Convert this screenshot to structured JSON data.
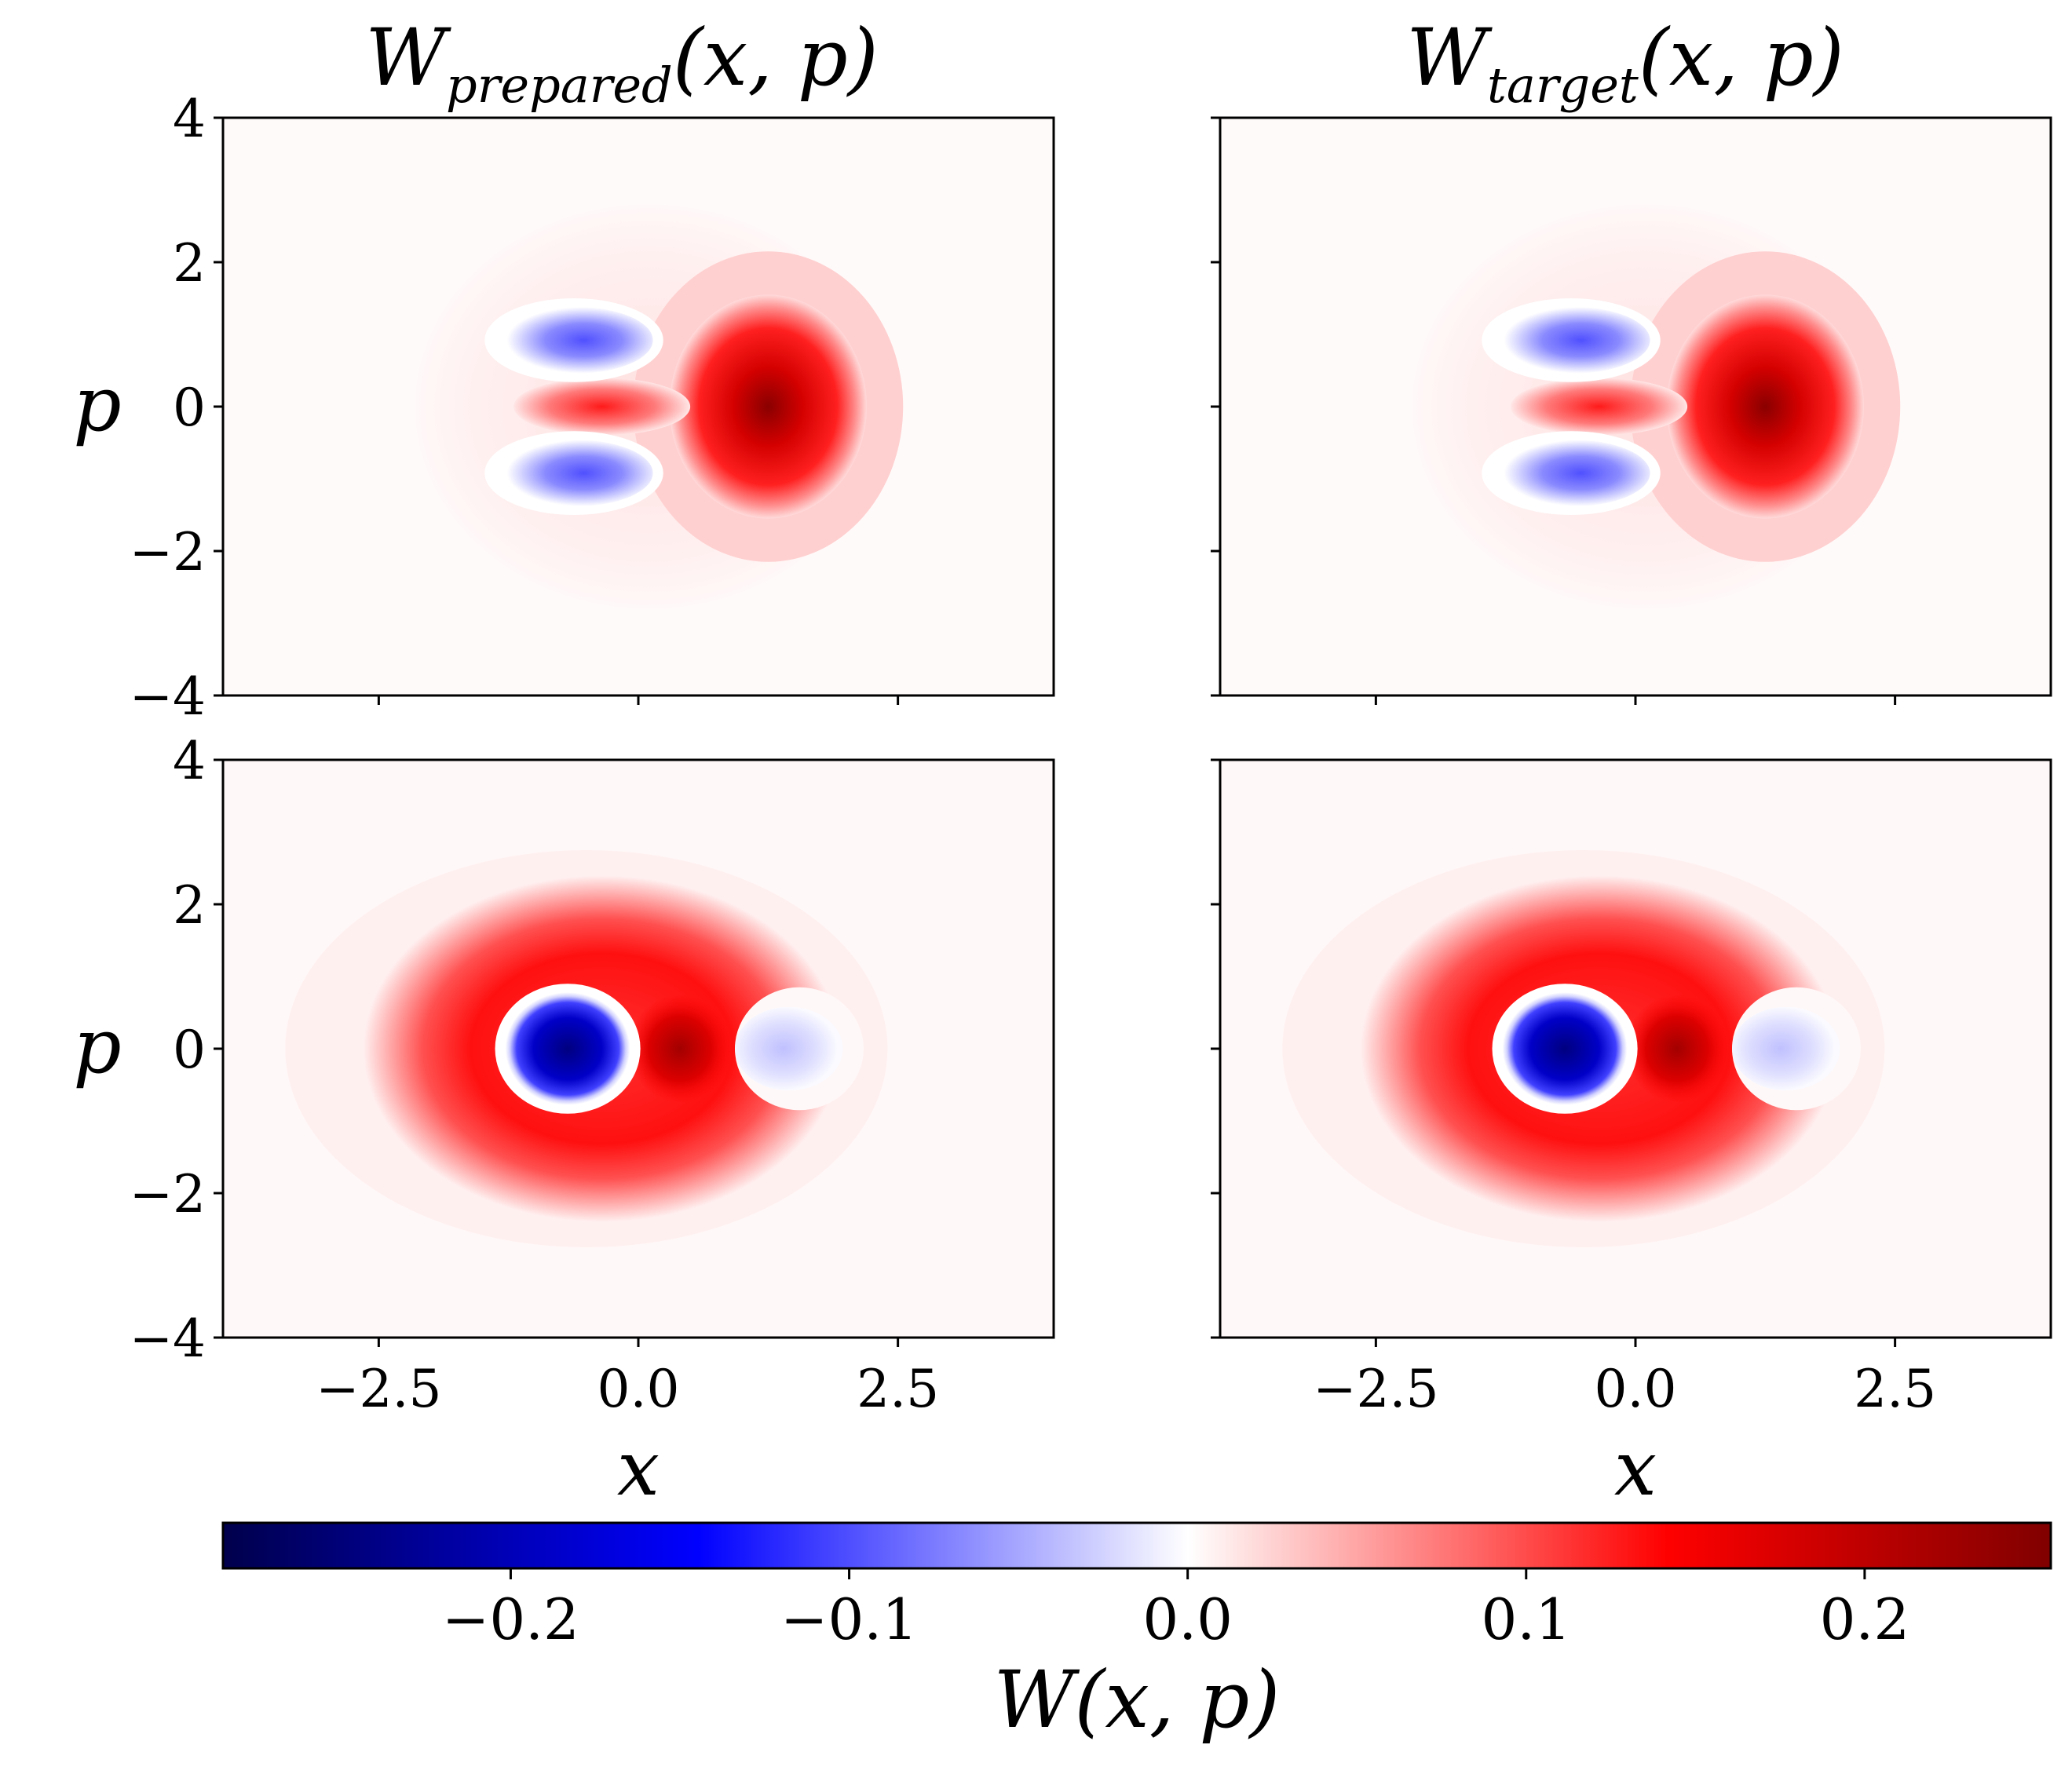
{
  "chart_data": [
    {
      "type": "heatmap",
      "id": "prepared-cat",
      "title": {
        "base": "W",
        "sub": "prepared",
        "args": "(x, p)"
      },
      "xlabel": "",
      "ylabel": "p",
      "xlim": [
        -4,
        4
      ],
      "ylim": [
        -4,
        4
      ],
      "xticks": [
        -2.5,
        0.0,
        2.5
      ],
      "xtick_labels": [],
      "yticks": [
        4,
        2,
        0,
        -2,
        -4
      ],
      "ytick_labels": [
        "4",
        "2",
        "0",
        "−2",
        "−4"
      ],
      "state": "cat",
      "description_values": {
        "peak_positive": 0.25,
        "peak_negative": -0.12
      }
    },
    {
      "type": "heatmap",
      "id": "target-cat",
      "title": {
        "base": "W",
        "sub": "target",
        "args": "(x, p)"
      },
      "xlabel": "",
      "ylabel": "",
      "xlim": [
        -4,
        4
      ],
      "ylim": [
        -4,
        4
      ],
      "xticks": [
        -2.5,
        0.0,
        2.5
      ],
      "xtick_labels": [],
      "yticks": [
        4,
        2,
        0,
        -2,
        -4
      ],
      "ytick_labels": [],
      "state": "cat",
      "description_values": {
        "peak_positive": 0.25,
        "peak_negative": -0.12
      }
    },
    {
      "type": "heatmap",
      "id": "prepared-fock",
      "title": null,
      "xlabel": "x",
      "ylabel": "p",
      "xlim": [
        -4,
        4
      ],
      "ylim": [
        -4,
        4
      ],
      "xticks": [
        -2.5,
        0.0,
        2.5
      ],
      "xtick_labels": [
        "−2.5",
        "0.0",
        "2.5"
      ],
      "yticks": [
        4,
        2,
        0,
        -2,
        -4
      ],
      "ytick_labels": [
        "4",
        "2",
        "0",
        "−2",
        "−4"
      ],
      "state": "fock",
      "description_values": {
        "peak_positive": 0.22,
        "peak_negative": -0.28
      }
    },
    {
      "type": "heatmap",
      "id": "target-fock",
      "title": null,
      "xlabel": "x",
      "ylabel": "",
      "xlim": [
        -4,
        4
      ],
      "ylim": [
        -4,
        4
      ],
      "xticks": [
        -2.5,
        0.0,
        2.5
      ],
      "xtick_labels": [
        "−2.5",
        "0.0",
        "2.5"
      ],
      "yticks": [
        4,
        2,
        0,
        -2,
        -4
      ],
      "ytick_labels": [],
      "state": "fock",
      "description_values": {
        "peak_positive": 0.22,
        "peak_negative": -0.28
      }
    }
  ],
  "colorbar": {
    "label": "W(x, p)",
    "range": [
      -0.285,
      0.255
    ],
    "ticks": [
      -0.2,
      -0.1,
      0.0,
      0.1,
      0.2
    ],
    "tick_labels": [
      "−0.2",
      "−0.1",
      "0.0",
      "0.1",
      "0.2"
    ],
    "colormap": "seismic",
    "colors": {
      "dark_blue": "#00004c",
      "blue": "#0000ff",
      "white": "#ffffff",
      "red": "#ff0000",
      "dark_red": "#800000"
    }
  }
}
